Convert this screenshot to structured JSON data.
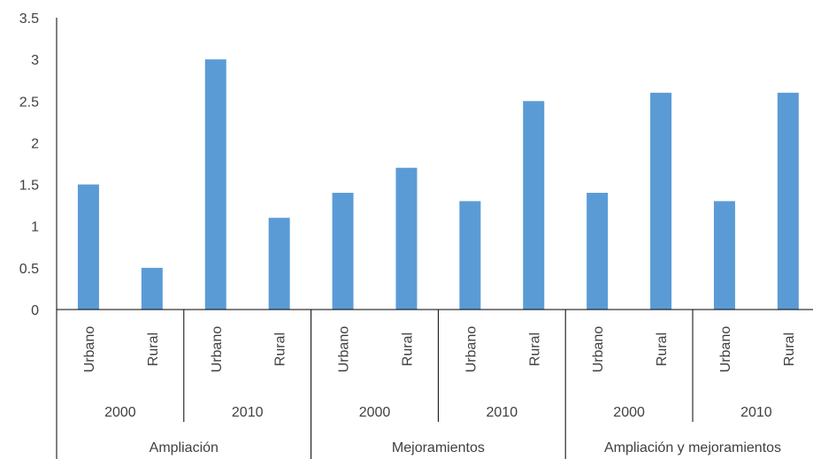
{
  "chart_data": {
    "type": "bar",
    "title": "",
    "xlabel": "",
    "ylabel": "",
    "ylim": [
      0,
      3.5
    ],
    "yticks": [
      "0",
      "0.5",
      "1",
      "1.5",
      "2",
      "2.5",
      "3",
      "3.5"
    ],
    "grid": false,
    "legend": "none",
    "bar_color": "#5b9bd5",
    "groups": [
      {
        "label": "Ampliación",
        "years": [
          {
            "label": "2000",
            "categories": [
              "Urbano",
              "Rural"
            ],
            "values": [
              1.5,
              0.5
            ]
          },
          {
            "label": "2010",
            "categories": [
              "Urbano",
              "Rural"
            ],
            "values": [
              3.0,
              1.1
            ]
          }
        ]
      },
      {
        "label": "Mejoramientos",
        "years": [
          {
            "label": "2000",
            "categories": [
              "Urbano",
              "Rural"
            ],
            "values": [
              1.4,
              1.7
            ]
          },
          {
            "label": "2010",
            "categories": [
              "Urbano",
              "Rural"
            ],
            "values": [
              1.3,
              2.5
            ]
          }
        ]
      },
      {
        "label": "Ampliación y mejoramientos",
        "years": [
          {
            "label": "2000",
            "categories": [
              "Urbano",
              "Rural"
            ],
            "values": [
              1.4,
              2.6
            ]
          },
          {
            "label": "2010",
            "categories": [
              "Urbano",
              "Rural"
            ],
            "values": [
              1.3,
              2.6
            ]
          }
        ]
      }
    ]
  }
}
